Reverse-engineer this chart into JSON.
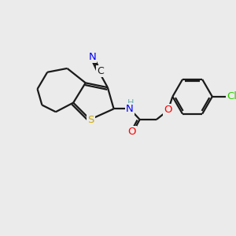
{
  "background_color": "#ebebeb",
  "bond_color": "#1a1a1a",
  "atom_colors": {
    "N": "#0000ff",
    "S": "#ccaa00",
    "O": "#ff0000",
    "Cl": "#33cc00",
    "C": "#1a1a1a",
    "H": "#6ab0b0"
  },
  "figsize": [
    3.0,
    3.0
  ],
  "dpi": 100
}
